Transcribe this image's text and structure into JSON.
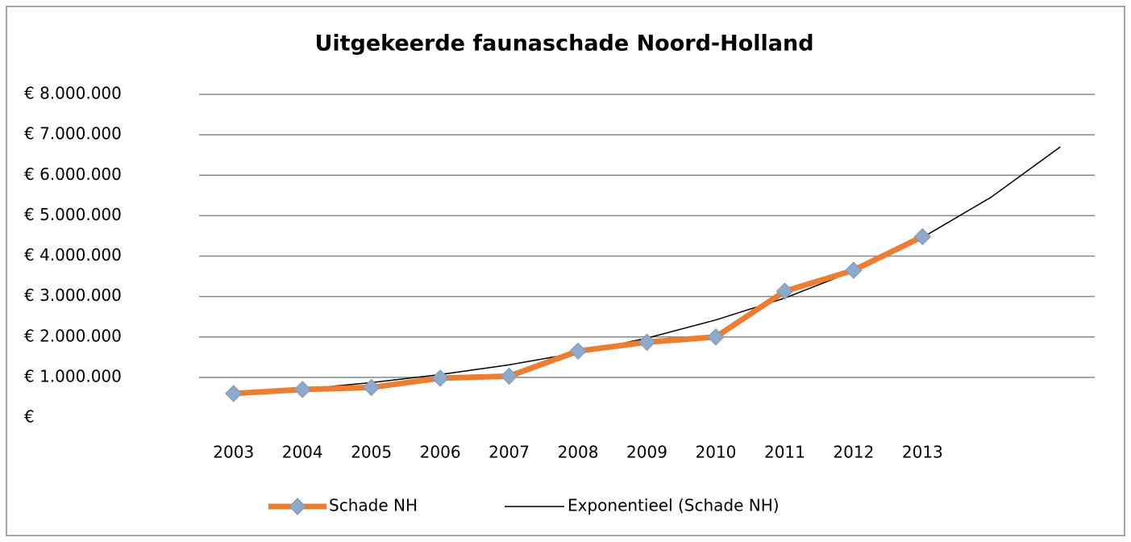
{
  "chart_data": {
    "type": "line",
    "title": "Uitgekeerde faunaschade Noord-Holland",
    "categories": [
      "2003",
      "2004",
      "2005",
      "2006",
      "2007",
      "2008",
      "2009",
      "2010",
      "2011",
      "2012",
      "2013",
      null,
      null
    ],
    "series": [
      {
        "name": "Schade NH",
        "color": "#ed7d31",
        "marker_color": "#8ea9c9",
        "values": [
          600000,
          700000,
          750000,
          980000,
          1030000,
          1650000,
          1870000,
          2000000,
          3130000,
          3650000,
          4480000,
          null,
          null
        ]
      },
      {
        "name": "Exponentieel (Schade NH)",
        "color": "#000000",
        "values": [
          580000,
          710000,
          870000,
          1070000,
          1310000,
          1610000,
          1970000,
          2420000,
          2960000,
          3630000,
          4460000,
          5460000,
          6700000
        ]
      }
    ],
    "ylim": [
      0,
      8000000
    ],
    "yticks": [
      {
        "value": 0,
        "label": "€"
      },
      {
        "value": 1000000,
        "label": "€ 1.000.000"
      },
      {
        "value": 2000000,
        "label": "€ 2.000.000"
      },
      {
        "value": 3000000,
        "label": "€ 3.000.000"
      },
      {
        "value": 4000000,
        "label": "€ 4.000.000"
      },
      {
        "value": 5000000,
        "label": "€ 5.000.000"
      },
      {
        "value": 6000000,
        "label": "€ 6.000.000"
      },
      {
        "value": 7000000,
        "label": "€ 7.000.000"
      },
      {
        "value": 8000000,
        "label": "€ 8.000.000"
      }
    ],
    "grid": true,
    "legend": "bottom"
  }
}
